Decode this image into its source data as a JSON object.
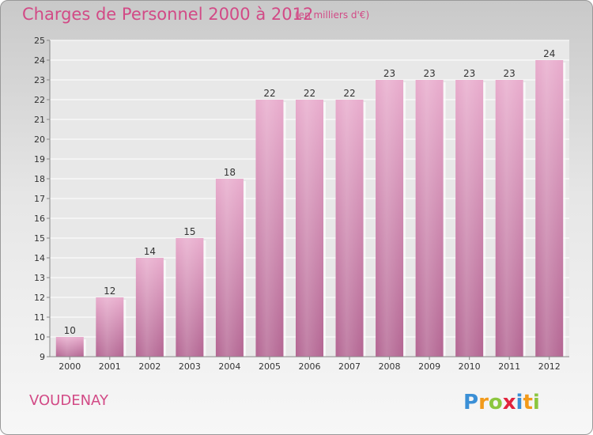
{
  "header": {
    "title": "Charges de Personnel 2000 à 2012",
    "subtitle": "(en milliers d'€)"
  },
  "footer": {
    "town": "VOUDENAY",
    "logo_text": "Proxiti"
  },
  "colors": {
    "bar": "#d98fb6",
    "bar_light": "#e8abcc",
    "bar_dark": "#b36592",
    "title": "#d24a86",
    "plot_background": "#e8e8e8"
  },
  "chart_data": {
    "type": "bar",
    "categories": [
      "2000",
      "2001",
      "2002",
      "2003",
      "2004",
      "2005",
      "2006",
      "2007",
      "2008",
      "2009",
      "2010",
      "2011",
      "2012"
    ],
    "values": [
      10,
      12,
      14,
      15,
      18,
      22,
      22,
      22,
      23,
      23,
      23,
      23,
      24
    ],
    "data_labels": [
      "10",
      "12",
      "14",
      "15",
      "18",
      "22",
      "22",
      "22",
      "23",
      "23",
      "23",
      "23",
      "24"
    ],
    "yticks": [
      "9",
      "10",
      "11",
      "12",
      "13",
      "14",
      "15",
      "16",
      "17",
      "18",
      "19",
      "20",
      "21",
      "22",
      "23",
      "24",
      "25"
    ],
    "title": "Charges de Personnel 2000 à 2012",
    "xlabel": "",
    "ylabel": "",
    "ylim": [
      9,
      25
    ],
    "grid": true,
    "legend": "none"
  }
}
